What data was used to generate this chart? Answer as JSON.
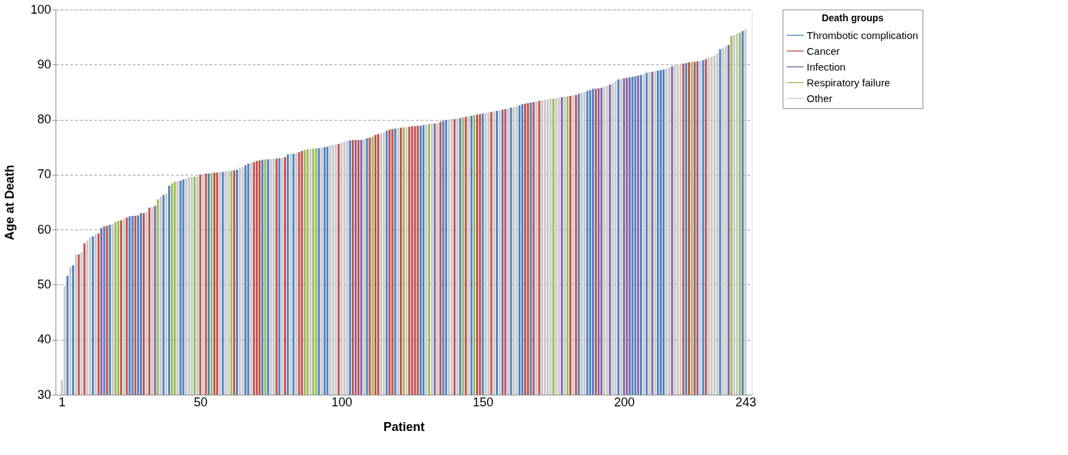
{
  "chart_data": {
    "type": "bar",
    "xlabel": "Patient",
    "ylabel": "Age at Death",
    "legend_title": "Death groups",
    "legend": "top right",
    "grid": "y",
    "xlim": [
      0,
      244
    ],
    "xticks": [
      1,
      50,
      100,
      150,
      200,
      243
    ],
    "ylim": [
      30,
      100
    ],
    "yticks": [
      30,
      40,
      50,
      60,
      70,
      80,
      90,
      100
    ],
    "series": [
      {
        "name": "Thrombotic complication",
        "color": "#4f81bd",
        "x": [
          3,
          5,
          12,
          16,
          18,
          25,
          26,
          28,
          29,
          37,
          39,
          43,
          44,
          53,
          58,
          63,
          66,
          67,
          72,
          74,
          78,
          81,
          83,
          92,
          94,
          95,
          103,
          109,
          116,
          119,
          128,
          129,
          136,
          137,
          142,
          146,
          150,
          155,
          160,
          163,
          164,
          167,
          184,
          187,
          188,
          189,
          198,
          203,
          204,
          206,
          208,
          212,
          213,
          214,
          222,
          228,
          234,
          242
        ],
        "values": [
          51.6,
          53.5,
          58.8,
          60.6,
          60.9,
          62.4,
          62.5,
          62.6,
          63.0,
          66.3,
          68.0,
          68.9,
          69.1,
          70.2,
          70.5,
          70.9,
          71.7,
          72.0,
          72.7,
          72.8,
          73.0,
          73.7,
          73.8,
          74.8,
          75.0,
          75.1,
          76.2,
          76.6,
          78.0,
          78.4,
          78.9,
          79.0,
          79.8,
          79.9,
          80.3,
          80.7,
          81.1,
          81.6,
          82.2,
          82.6,
          82.8,
          83.1,
          84.7,
          85.2,
          85.4,
          85.6,
          87.3,
          87.8,
          87.9,
          88.1,
          88.5,
          88.9,
          89.0,
          89.1,
          90.3,
          90.8,
          92.8,
          96.1
        ]
      },
      {
        "name": "Cancer",
        "color": "#c0504d",
        "x": [
          7,
          9,
          14,
          17,
          22,
          24,
          27,
          30,
          32,
          50,
          52,
          55,
          56,
          62,
          69,
          70,
          71,
          77,
          80,
          85,
          86,
          99,
          104,
          106,
          110,
          112,
          113,
          117,
          118,
          121,
          124,
          125,
          126,
          127,
          135,
          140,
          144,
          148,
          149,
          153,
          158,
          165,
          166,
          168,
          170,
          181,
          183,
          190,
          221,
          223,
          225,
          229
        ],
        "values": [
          55.5,
          57.5,
          59.3,
          60.7,
          61.7,
          62.2,
          62.5,
          63.0,
          64.0,
          70.0,
          70.2,
          70.4,
          70.4,
          70.8,
          72.3,
          72.5,
          72.6,
          72.9,
          73.2,
          74.1,
          74.3,
          75.6,
          76.3,
          76.3,
          76.7,
          77.2,
          77.4,
          78.2,
          78.3,
          78.5,
          78.7,
          78.8,
          78.8,
          78.9,
          79.6,
          80.1,
          80.5,
          80.9,
          81.0,
          81.4,
          81.9,
          82.9,
          83.0,
          83.2,
          83.4,
          84.3,
          84.5,
          85.6,
          90.2,
          90.4,
          90.5,
          91.0
        ]
      },
      {
        "name": "Infection",
        "color": "#8064a2",
        "x": [
          15,
          34,
          105,
          107,
          133,
          157,
          178,
          191,
          192,
          195,
          200,
          201,
          202,
          205,
          210,
          217,
          226,
          237
        ],
        "values": [
          60.3,
          64.3,
          76.3,
          76.3,
          79.3,
          81.8,
          84.1,
          85.7,
          85.8,
          86.4,
          87.5,
          87.6,
          87.7,
          88.0,
          88.7,
          89.7,
          90.6,
          93.6
        ]
      },
      {
        "name": "Respiratory failure",
        "color": "#9bbb59",
        "x": [
          20,
          21,
          35,
          40,
          41,
          48,
          54,
          61,
          73,
          87,
          88,
          90,
          91,
          111,
          122,
          131,
          143,
          147,
          175,
          180,
          224,
          238,
          241
        ],
        "values": [
          61.4,
          61.6,
          65.5,
          68.4,
          68.7,
          69.6,
          70.3,
          70.7,
          72.8,
          74.5,
          74.6,
          74.7,
          74.8,
          76.9,
          78.6,
          79.2,
          80.4,
          80.8,
          83.8,
          84.2,
          90.5,
          95.2,
          95.8
        ]
      },
      {
        "name": "Other",
        "color": "#c8c8c8",
        "x": [
          1,
          2,
          4,
          6,
          8,
          10,
          11,
          13,
          19,
          23,
          31,
          33,
          36,
          38,
          42,
          45,
          46,
          47,
          49,
          51,
          57,
          59,
          60,
          64,
          65,
          68,
          75,
          76,
          79,
          82,
          84,
          89,
          93,
          96,
          97,
          98,
          100,
          101,
          102,
          108,
          114,
          115,
          120,
          123,
          130,
          132,
          134,
          138,
          139,
          141,
          145,
          151,
          152,
          154,
          156,
          159,
          161,
          162,
          169,
          171,
          172,
          173,
          174,
          176,
          177,
          179,
          182,
          185,
          186,
          193,
          194,
          196,
          197,
          199,
          207,
          209,
          211,
          215,
          216,
          218,
          219,
          220,
          227,
          230,
          231,
          232,
          233,
          235,
          236,
          239,
          240,
          243
        ],
        "values": [
          32.7,
          49.7,
          53.2,
          55.5,
          55.9,
          58.0,
          58.6,
          59.2,
          61.0,
          62.0,
          63.2,
          64.1,
          66.0,
          66.6,
          68.8,
          69.3,
          69.5,
          69.6,
          69.7,
          70.1,
          70.5,
          70.6,
          70.7,
          71.3,
          71.4,
          72.2,
          72.8,
          72.9,
          73.1,
          73.8,
          73.9,
          74.7,
          74.9,
          75.3,
          75.4,
          75.5,
          75.8,
          76.0,
          76.2,
          76.4,
          77.5,
          77.6,
          78.5,
          78.6,
          79.1,
          79.3,
          79.4,
          80.0,
          80.1,
          80.2,
          80.6,
          81.2,
          81.3,
          81.5,
          81.7,
          82.0,
          82.3,
          82.5,
          83.3,
          83.5,
          83.6,
          83.7,
          83.8,
          83.9,
          84.0,
          84.2,
          84.4,
          84.9,
          85.0,
          86.0,
          86.2,
          86.7,
          87.0,
          87.4,
          88.3,
          88.6,
          88.8,
          89.3,
          89.5,
          89.9,
          90.0,
          90.1,
          90.7,
          91.3,
          91.4,
          91.6,
          92.0,
          93.0,
          93.3,
          95.4,
          95.6,
          96.4
        ]
      }
    ]
  }
}
